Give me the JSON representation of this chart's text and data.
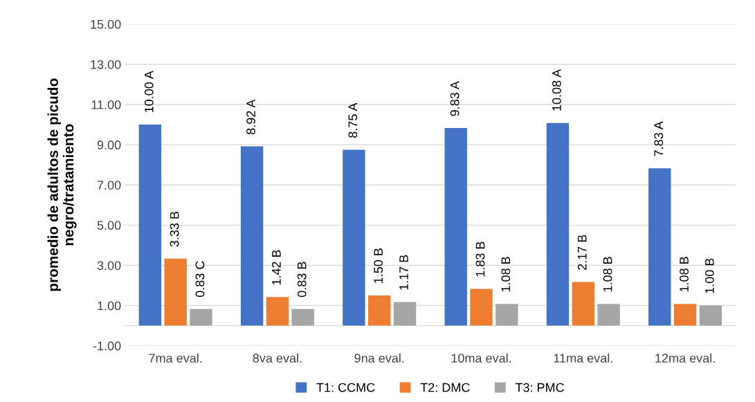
{
  "chart_data": {
    "type": "bar",
    "ylabel": "promedio de adultos de picudo\nnegro/tratamiento",
    "categories": [
      "7ma eval.",
      "8va eval.",
      "9na eval.",
      "10ma eval.",
      "11ma eval.",
      "12ma eval."
    ],
    "series": [
      {
        "name": "T1: CCMC",
        "color": "#4472c4",
        "values": [
          10.0,
          8.92,
          8.75,
          9.83,
          10.08,
          7.83
        ],
        "value_labels": [
          "10.00 A",
          "8.92 A",
          "8.75 A",
          "9.83 A",
          "10.08 A",
          "7.83 A"
        ]
      },
      {
        "name": "T2: DMC",
        "color": "#ed7d31",
        "values": [
          3.33,
          1.42,
          1.5,
          1.83,
          2.17,
          1.08
        ],
        "value_labels": [
          "3.33 B",
          "1.42 B",
          "1.50 B",
          "1.83 B",
          "2.17 B",
          "1.08 B"
        ]
      },
      {
        "name": "T3: PMC",
        "color": "#a5a5a5",
        "values": [
          0.83,
          0.83,
          1.17,
          1.08,
          1.08,
          1.0
        ],
        "value_labels": [
          "0.83 C",
          "0.83 B",
          "1.17 B",
          "1.08 B",
          "1.08 B",
          "1.00 B"
        ]
      }
    ],
    "ylim": [
      -1,
      15
    ],
    "yticks": [
      {
        "value": -1,
        "label": "-1.00"
      },
      {
        "value": 1,
        "label": "1.00"
      },
      {
        "value": 3,
        "label": "3.00"
      },
      {
        "value": 5,
        "label": "5.00"
      },
      {
        "value": 7,
        "label": "7.00"
      },
      {
        "value": 9,
        "label": "9.00"
      },
      {
        "value": 11,
        "label": "11.00"
      },
      {
        "value": 13,
        "label": "13.00"
      },
      {
        "value": 15,
        "label": "15.00"
      }
    ],
    "grid": "y",
    "legend": "bottom"
  }
}
